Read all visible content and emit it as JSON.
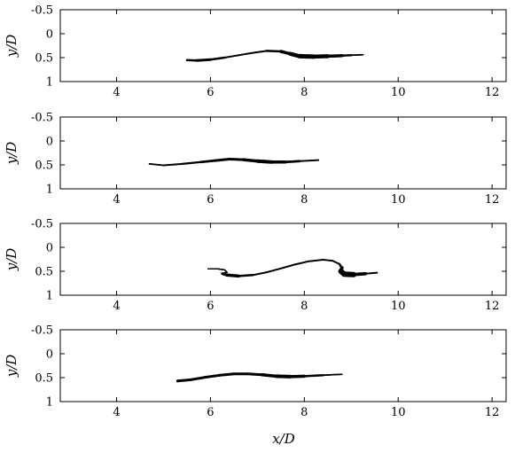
{
  "chart_data": [
    {
      "type": "line",
      "title": "",
      "xlabel": "",
      "ylabel": "y/D",
      "xlim": [
        2.8,
        12.3
      ],
      "ylim": [
        -0.5,
        1
      ],
      "y_inverted": true,
      "xticks": [
        "4",
        "6",
        "8",
        "10",
        "12"
      ],
      "yticks": [
        "-0.5",
        "0",
        "0.5",
        "1"
      ],
      "series": [
        {
          "x": [
            5.5,
            5.7,
            6.0,
            6.3,
            6.6,
            6.9,
            7.2,
            7.5,
            7.7,
            7.9,
            8.2,
            8.5,
            8.8,
            9.0,
            9.25
          ],
          "y": [
            0.55,
            0.56,
            0.54,
            0.5,
            0.45,
            0.4,
            0.36,
            0.37,
            0.42,
            0.47,
            0.48,
            0.47,
            0.46,
            0.45,
            0.44
          ],
          "width": [
            2,
            3,
            3,
            2,
            2,
            2,
            2,
            3,
            4,
            5,
            5,
            4,
            3,
            2,
            1.5
          ]
        }
      ]
    },
    {
      "type": "line",
      "title": "",
      "xlabel": "",
      "ylabel": "y/D",
      "xlim": [
        2.8,
        12.3
      ],
      "ylim": [
        -0.5,
        1
      ],
      "y_inverted": true,
      "xticks": [
        "4",
        "6",
        "8",
        "10",
        "12"
      ],
      "yticks": [
        "-0.5",
        "0",
        "0.5",
        "1"
      ],
      "series": [
        {
          "x": [
            4.7,
            5.0,
            5.4,
            5.8,
            6.1,
            6.4,
            6.7,
            7.0,
            7.3,
            7.6,
            7.9,
            8.3
          ],
          "y": [
            0.48,
            0.51,
            0.48,
            0.44,
            0.41,
            0.38,
            0.39,
            0.42,
            0.44,
            0.44,
            0.42,
            0.4
          ],
          "width": [
            1.5,
            2,
            2,
            2.5,
            3,
            3,
            3,
            4,
            4,
            3,
            2.5,
            1.5
          ]
        }
      ]
    },
    {
      "type": "line",
      "title": "",
      "xlabel": "",
      "ylabel": "y/D",
      "xlim": [
        2.8,
        12.3
      ],
      "ylim": [
        -0.5,
        1
      ],
      "y_inverted": true,
      "xticks": [
        "4",
        "6",
        "8",
        "10",
        "12"
      ],
      "yticks": [
        "-0.5",
        "0",
        "0.5",
        "1"
      ],
      "series": [
        {
          "x": [
            5.95,
            6.15,
            6.3,
            6.35,
            6.25,
            6.35,
            6.6,
            6.9,
            7.2,
            7.5,
            7.8,
            8.1,
            8.4,
            8.6,
            8.75,
            8.8,
            8.78,
            8.85,
            9.05,
            9.3,
            9.55
          ],
          "y": [
            0.45,
            0.45,
            0.47,
            0.52,
            0.55,
            0.58,
            0.6,
            0.58,
            0.52,
            0.44,
            0.36,
            0.29,
            0.26,
            0.28,
            0.35,
            0.43,
            0.5,
            0.56,
            0.57,
            0.55,
            0.53
          ],
          "width": [
            1.5,
            1.5,
            1.5,
            1.5,
            2,
            4,
            3,
            2,
            2,
            2,
            2,
            2,
            2,
            2,
            2,
            3,
            5,
            7,
            5,
            2.5,
            1.5
          ]
        }
      ]
    },
    {
      "type": "line",
      "title": "",
      "xlabel": "x/D",
      "ylabel": "y/D",
      "xlim": [
        2.8,
        12.3
      ],
      "ylim": [
        -0.5,
        1
      ],
      "y_inverted": true,
      "xticks": [
        "4",
        "6",
        "8",
        "10",
        "12"
      ],
      "yticks": [
        "-0.5",
        "0",
        "0.5",
        "1"
      ],
      "series": [
        {
          "x": [
            5.3,
            5.6,
            5.9,
            6.2,
            6.5,
            6.8,
            7.1,
            7.4,
            7.7,
            8.0,
            8.4,
            8.8
          ],
          "y": [
            0.57,
            0.54,
            0.49,
            0.45,
            0.42,
            0.42,
            0.44,
            0.47,
            0.48,
            0.47,
            0.45,
            0.43
          ],
          "width": [
            3,
            3,
            3,
            3,
            3,
            3,
            3,
            4,
            4,
            3,
            2,
            1.5
          ]
        }
      ]
    }
  ]
}
